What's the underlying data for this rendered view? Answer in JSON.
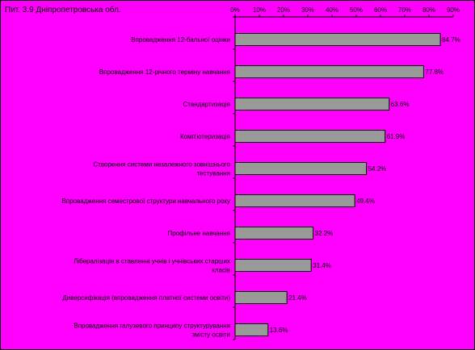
{
  "chart_data": {
    "type": "bar",
    "orientation": "horizontal",
    "title": "Пит. 3.9 Дніпропетровська обл.",
    "xlim": [
      0,
      90
    ],
    "tick_labels": [
      "0%",
      "10%",
      "20%",
      "30%",
      "40%",
      "50%",
      "60%",
      "70%",
      "80%",
      "90%"
    ],
    "axis_position": "top",
    "grid": false,
    "bar_color": "#999999",
    "background_color": "#ff00ff",
    "categories": [
      [
        "Впровадження 12-бальної оцінки"
      ],
      [
        "Впровадження 12-річного терміну навчання"
      ],
      [
        "Стандартизація"
      ],
      [
        "Комп'ютеризація"
      ],
      [
        "Створення системи незалежного зовнішнього",
        "тестування"
      ],
      [
        "Впровадження семестрової структури навчального року"
      ],
      [
        "Профільне навчання"
      ],
      [
        "Лібералізація в ставленні учнів і учнівських старших",
        "класів"
      ],
      [
        "Диверсифікація (впровадження платної системи освіти)"
      ],
      [
        "Впровадження галузевого принципу структурування",
        "змісту освіти"
      ]
    ],
    "values": [
      84.7,
      77.8,
      63.6,
      61.9,
      54.2,
      49.4,
      32.2,
      31.4,
      21.4,
      13.6
    ],
    "value_labels": [
      "84.7%",
      "77.8%",
      "63.6%",
      "61.9%",
      "54.2%",
      "49.4%",
      "32.2%",
      "31.4%",
      "21.4%",
      "13.6%"
    ]
  }
}
